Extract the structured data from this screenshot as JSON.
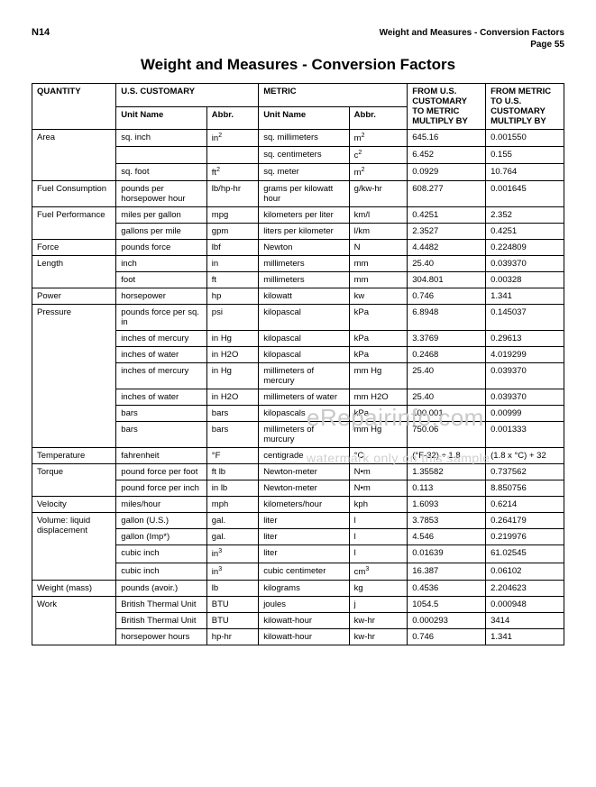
{
  "header": {
    "doc_code": "N14",
    "section_title": "Weight and Measures - Conversion Factors",
    "page_label": "Page 55"
  },
  "title": "Weight and Measures - Conversion Factors",
  "watermark": {
    "line1": "eRepairinfo.com",
    "line2": "watermark only on this sample"
  },
  "table": {
    "headers": {
      "quantity": "QUANTITY",
      "us_customary": "U.S. CUSTOMARY",
      "metric": "METRIC",
      "from_us": "FROM U.S. CUSTOMARY TO METRIC MULTIPLY BY",
      "from_metric": "FROM METRIC TO U.S. CUSTOMARY MULTIPLY BY",
      "unit_name": "Unit Name",
      "abbr": "Abbr."
    },
    "rows": [
      {
        "q": "Area",
        "un": "sq. inch",
        "ab": "in²",
        "mun": "sq. millimeters",
        "mab": "m²",
        "f1": "645.16",
        "f2": "0.001550"
      },
      {
        "q": "",
        "un": "",
        "ab": "",
        "mun": "sq. centimeters",
        "mab": "c²",
        "f1": "6.452",
        "f2": "0.155"
      },
      {
        "q": "",
        "un": "sq. foot",
        "ab": "ft²",
        "mun": "sq. meter",
        "mab": "m²",
        "f1": "0.0929",
        "f2": "10.764"
      },
      {
        "q": "Fuel Consumption",
        "un": "pounds per horsepower hour",
        "ab": "lb/hp-hr",
        "mun": "grams per kilowatt hour",
        "mab": "g/kw-hr",
        "f1": "608.277",
        "f2": "0.001645"
      },
      {
        "q": "Fuel Performance",
        "un": "miles per gallon",
        "ab": "mpg",
        "mun": "kilometers per liter",
        "mab": "km/l",
        "f1": "0.4251",
        "f2": "2.352"
      },
      {
        "q": "",
        "un": "gallons per mile",
        "ab": "gpm",
        "mun": "liters per kilometer",
        "mab": "l/km",
        "f1": "2.3527",
        "f2": "0.4251"
      },
      {
        "q": "Force",
        "un": "pounds force",
        "ab": "lbf",
        "mun": "Newton",
        "mab": "N",
        "f1": "4.4482",
        "f2": "0.224809"
      },
      {
        "q": "Length",
        "un": "inch",
        "ab": "in",
        "mun": "millimeters",
        "mab": "mm",
        "f1": "25.40",
        "f2": "0.039370"
      },
      {
        "q": "",
        "un": "foot",
        "ab": "ft",
        "mun": "millimeters",
        "mab": "mm",
        "f1": "304.801",
        "f2": "0.00328"
      },
      {
        "q": "Power",
        "un": "horsepower",
        "ab": "hp",
        "mun": "kilowatt",
        "mab": "kw",
        "f1": "0.746",
        "f2": "1.341"
      },
      {
        "q": "Pressure",
        "un": "pounds force per sq. in",
        "ab": "psi",
        "mun": "kilopascal",
        "mab": "kPa",
        "f1": "6.8948",
        "f2": "0.145037"
      },
      {
        "q": "",
        "un": "inches of mercury",
        "ab": "in Hg",
        "mun": "kilopascal",
        "mab": "kPa",
        "f1": "3.3769",
        "f2": "0.29613"
      },
      {
        "q": "",
        "un": "inches of water",
        "ab": "in H2O",
        "mun": "kilopascal",
        "mab": "kPa",
        "f1": "0.2468",
        "f2": "4.019299"
      },
      {
        "q": "",
        "un": "inches of mercury",
        "ab": "in Hg",
        "mun": "millimeters of mercury",
        "mab": "mm Hg",
        "f1": "25.40",
        "f2": "0.039370"
      },
      {
        "q": "",
        "un": "inches of water",
        "ab": "in H2O",
        "mun": "millimeters of water",
        "mab": "mm H2O",
        "f1": "25.40",
        "f2": "0.039370"
      },
      {
        "q": "",
        "un": "bars",
        "ab": "bars",
        "mun": "kilopascals",
        "mab": "kPa",
        "f1": "100.001",
        "f2": "0.00999"
      },
      {
        "q": "",
        "un": "bars",
        "ab": "bars",
        "mun": "millimeters of murcury",
        "mab": "mm Hg",
        "f1": "750.06",
        "f2": "0.001333"
      },
      {
        "q": "Temperature",
        "un": "fahrenheit",
        "ab": "°F",
        "mun": "centigrade",
        "mab": "°C",
        "f1": "(°F-32) ÷ 1.8",
        "f2": "(1.8 x °C) + 32"
      },
      {
        "q": "Torque",
        "un": "pound force per foot",
        "ab": "ft lb",
        "mun": "Newton-meter",
        "mab": "N•m",
        "f1": "1.35582",
        "f2": "0.737562"
      },
      {
        "q": "",
        "un": "pound force per inch",
        "ab": "in lb",
        "mun": "Newton-meter",
        "mab": "N•m",
        "f1": "0.113",
        "f2": "8.850756"
      },
      {
        "q": "Velocity",
        "un": "miles/hour",
        "ab": "mph",
        "mun": "kilometers/hour",
        "mab": "kph",
        "f1": "1.6093",
        "f2": "0.6214"
      },
      {
        "q": "Volume: liquid displacement",
        "un": "gallon (U.S.)",
        "ab": "gal.",
        "mun": "liter",
        "mab": "l",
        "f1": "3.7853",
        "f2": "0.264179"
      },
      {
        "q": "",
        "un": "gallon (Imp*)",
        "ab": "gal.",
        "mun": "liter",
        "mab": "l",
        "f1": "4.546",
        "f2": "0.219976"
      },
      {
        "q": "",
        "un": "cubic inch",
        "ab": "in³",
        "mun": "liter",
        "mab": "l",
        "f1": "0.01639",
        "f2": "61.02545"
      },
      {
        "q": "",
        "un": "cubic inch",
        "ab": "in³",
        "mun": "cubic centimeter",
        "mab": "cm³",
        "f1": "16.387",
        "f2": "0.06102"
      },
      {
        "q": "Weight (mass)",
        "un": "pounds (avoir.)",
        "ab": "lb",
        "mun": "kilograms",
        "mab": "kg",
        "f1": "0.4536",
        "f2": "2.204623"
      },
      {
        "q": "Work",
        "un": "British Thermal Unit",
        "ab": "BTU",
        "mun": "joules",
        "mab": "j",
        "f1": "1054.5",
        "f2": "0.000948"
      },
      {
        "q": "",
        "un": "British Thermal Unit",
        "ab": "BTU",
        "mun": "kilowatt-hour",
        "mab": "kw-hr",
        "f1": "0.000293",
        "f2": "3414"
      },
      {
        "q": "",
        "un": "horsepower hours",
        "ab": "hp-hr",
        "mun": "kilowatt-hour",
        "mab": "kw-hr",
        "f1": "0.746",
        "f2": "1.341"
      }
    ],
    "groups": {
      "0": 3,
      "3": 1,
      "4": 2,
      "6": 1,
      "7": 2,
      "9": 1,
      "10": 7,
      "17": 1,
      "18": 2,
      "20": 1,
      "21": 4,
      "25": 1,
      "26": 3
    }
  }
}
